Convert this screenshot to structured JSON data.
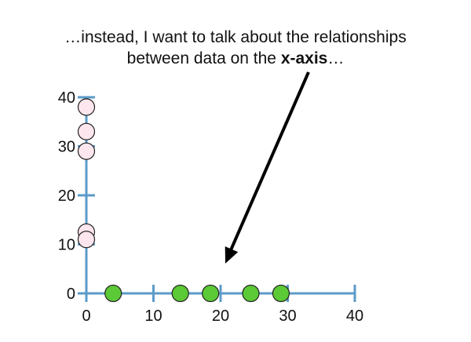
{
  "caption": {
    "line1": "…instead, I want to talk about the relationships",
    "line2_prefix": "between data on the ",
    "line2_bold": "x-axis",
    "line2_suffix": "…"
  },
  "chart_data": {
    "type": "scatter",
    "title": "",
    "xlabel": "",
    "ylabel": "",
    "xlim": [
      0,
      40
    ],
    "ylim": [
      0,
      40
    ],
    "x_ticks": [
      0,
      10,
      20,
      30,
      40
    ],
    "y_ticks": [
      0,
      10,
      20,
      30,
      40
    ],
    "x_tick_labels": [
      "0",
      "10",
      "20",
      "30",
      "40"
    ],
    "y_tick_labels": [
      "0",
      "10",
      "20",
      "30",
      "40"
    ],
    "grid": false,
    "legend": "none",
    "series": [
      {
        "color": "#5cc936",
        "points": [
          [
            4,
            0
          ],
          [
            14,
            0
          ],
          [
            18.5,
            0
          ],
          [
            24.5,
            0
          ],
          [
            29,
            0
          ]
        ]
      },
      {
        "color": "#fde6ee",
        "points": [
          [
            0,
            38
          ],
          [
            0,
            33
          ],
          [
            0,
            29
          ],
          [
            0,
            12.5
          ],
          [
            0,
            11
          ]
        ]
      }
    ],
    "axis_color": "#5b9bc8",
    "arrow_color": "#000000"
  }
}
